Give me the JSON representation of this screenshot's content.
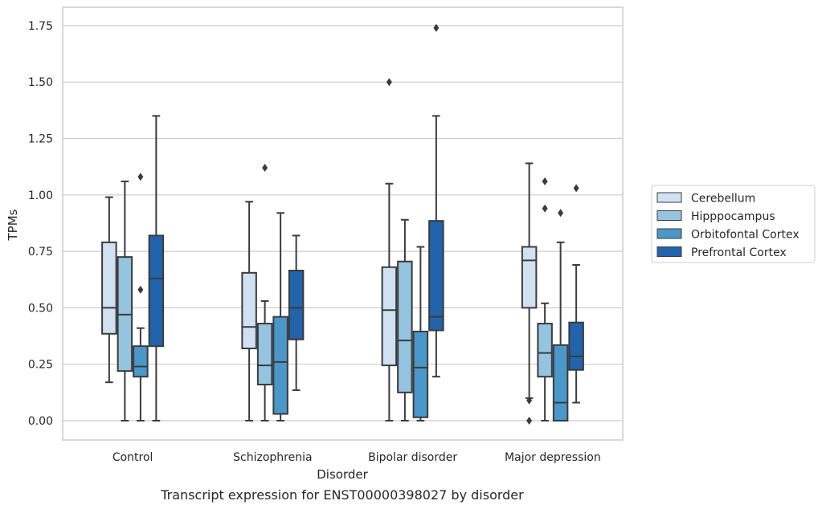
{
  "chart_data": {
    "type": "box",
    "title": "",
    "caption": "Transcript expression for ENST00000398027 by disorder",
    "xlabel": "Disorder",
    "ylabel": "TPMs",
    "ylim": [
      -0.085,
      1.83
    ],
    "yticks": [
      0.0,
      0.25,
      0.5,
      0.75,
      1.0,
      1.25,
      1.5,
      1.75
    ],
    "ytick_labels": [
      "0.00",
      "0.25",
      "0.50",
      "0.75",
      "1.00",
      "1.25",
      "1.50",
      "1.75"
    ],
    "categories": [
      "Control",
      "Schizophrenia",
      "Bipolar disorder",
      "Major depression"
    ],
    "grid": "horizontal",
    "legend_position": "right, outside plot",
    "series": [
      {
        "name": "Cerebellum",
        "color": "#d0e1f2",
        "boxes": [
          {
            "whislo": 0.17,
            "q1": 0.385,
            "med": 0.5,
            "q3": 0.79,
            "whishi": 0.99,
            "fliers": []
          },
          {
            "whislo": 0.0,
            "q1": 0.32,
            "med": 0.415,
            "q3": 0.655,
            "whishi": 0.97,
            "fliers": []
          },
          {
            "whislo": 0.0,
            "q1": 0.245,
            "med": 0.49,
            "q3": 0.68,
            "whishi": 1.05,
            "fliers": [
              1.5
            ]
          },
          {
            "whislo": 0.1,
            "q1": 0.5,
            "med": 0.71,
            "q3": 0.77,
            "whishi": 1.14,
            "fliers": [
              0.09,
              0.0
            ]
          }
        ]
      },
      {
        "name": "Hipppocampus",
        "color": "#94c4df",
        "boxes": [
          {
            "whislo": 0.0,
            "q1": 0.22,
            "med": 0.47,
            "q3": 0.725,
            "whishi": 1.06,
            "fliers": []
          },
          {
            "whislo": 0.0,
            "q1": 0.16,
            "med": 0.245,
            "q3": 0.43,
            "whishi": 0.53,
            "fliers": [
              1.12
            ]
          },
          {
            "whislo": 0.0,
            "q1": 0.125,
            "med": 0.355,
            "q3": 0.705,
            "whishi": 0.89,
            "fliers": []
          },
          {
            "whislo": 0.0,
            "q1": 0.195,
            "med": 0.3,
            "q3": 0.43,
            "whishi": 0.52,
            "fliers": [
              1.06,
              0.94
            ]
          }
        ]
      },
      {
        "name": "Orbitofontal Cortex",
        "color": "#4a98c9",
        "boxes": [
          {
            "whislo": 0.0,
            "q1": 0.195,
            "med": 0.24,
            "q3": 0.33,
            "whishi": 0.41,
            "fliers": [
              1.08,
              0.58
            ]
          },
          {
            "whislo": 0.0,
            "q1": 0.03,
            "med": 0.26,
            "q3": 0.46,
            "whishi": 0.92,
            "fliers": []
          },
          {
            "whislo": 0.0,
            "q1": 0.015,
            "med": 0.235,
            "q3": 0.395,
            "whishi": 0.77,
            "fliers": []
          },
          {
            "whislo": 0.0,
            "q1": 0.0,
            "med": 0.08,
            "q3": 0.335,
            "whishi": 0.79,
            "fliers": [
              0.92
            ]
          }
        ]
      },
      {
        "name": "Prefrontal Cortex",
        "color": "#2164ab",
        "boxes": [
          {
            "whislo": 0.0,
            "q1": 0.33,
            "med": 0.63,
            "q3": 0.82,
            "whishi": 1.35,
            "fliers": []
          },
          {
            "whislo": 0.135,
            "q1": 0.36,
            "med": 0.5,
            "q3": 0.665,
            "whishi": 0.82,
            "fliers": []
          },
          {
            "whislo": 0.195,
            "q1": 0.4,
            "med": 0.46,
            "q3": 0.885,
            "whishi": 1.35,
            "fliers": [
              1.74
            ]
          },
          {
            "whislo": 0.08,
            "q1": 0.225,
            "med": 0.285,
            "q3": 0.435,
            "whishi": 0.69,
            "fliers": [
              1.03
            ]
          }
        ]
      }
    ]
  }
}
